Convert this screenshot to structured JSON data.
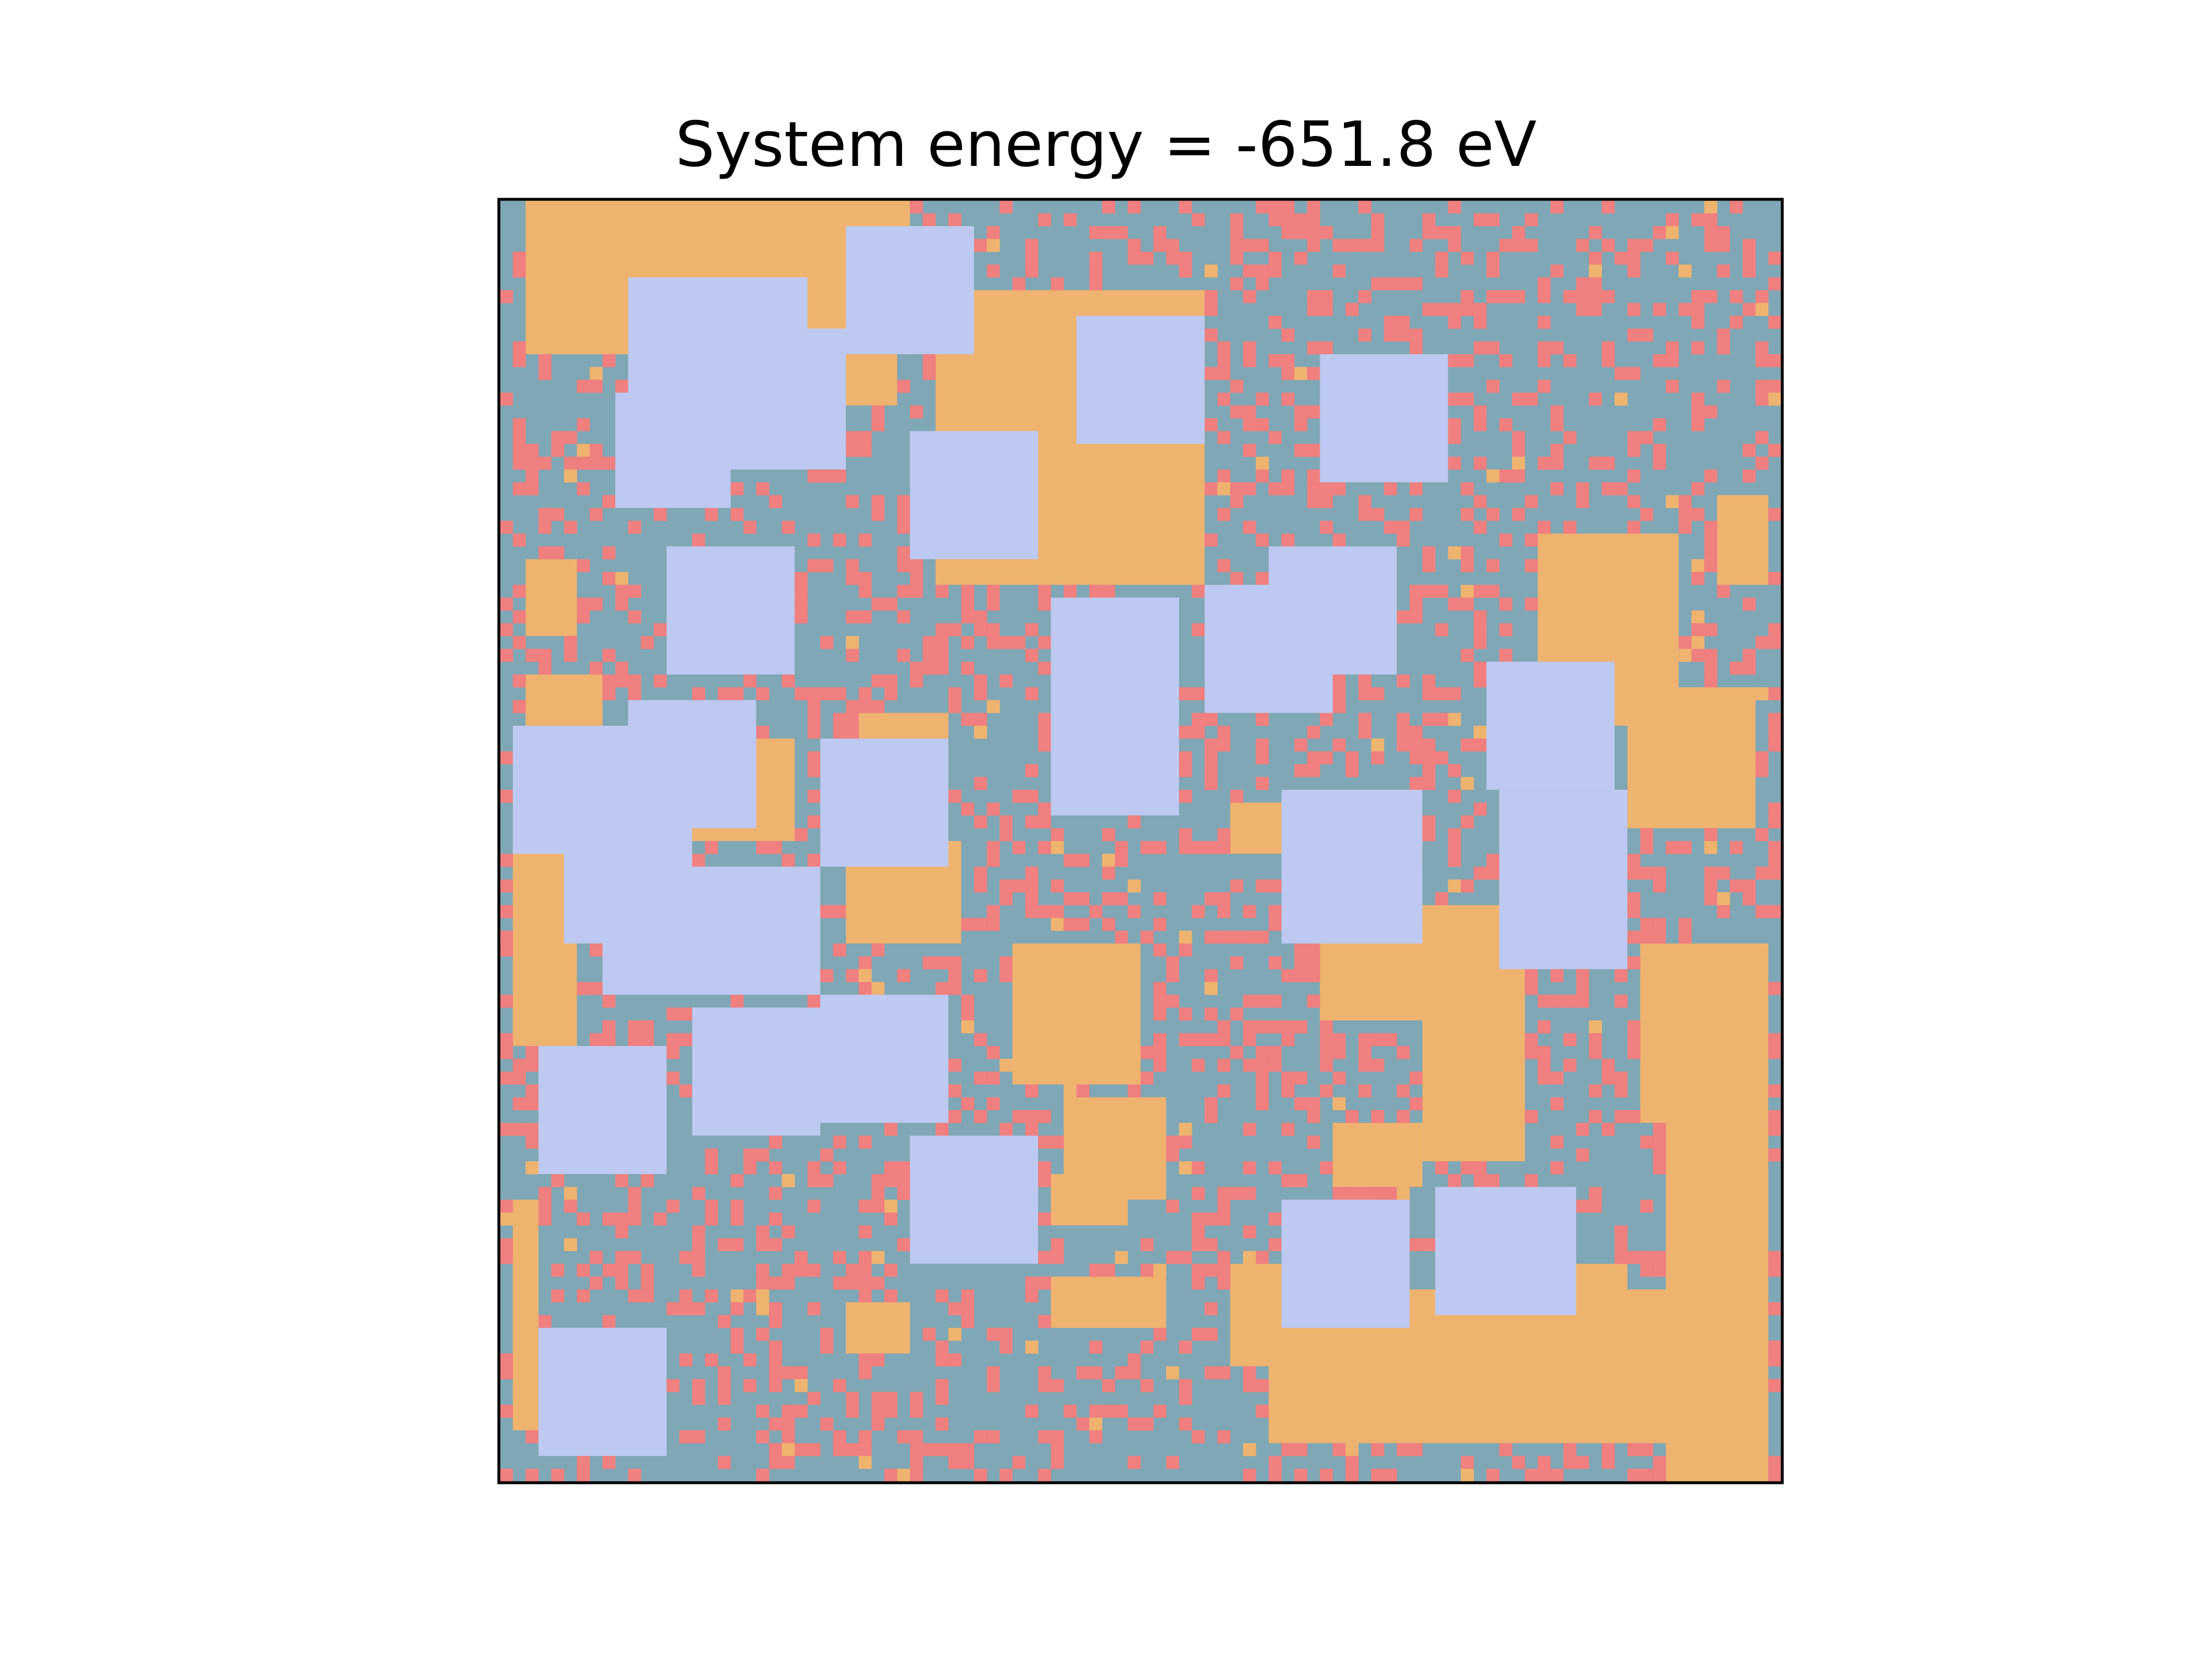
{
  "chart_data": {
    "type": "heatmap",
    "title": "System energy = -651.8 eV",
    "xlabel": "",
    "ylabel": "",
    "grid": false,
    "axis_ticks": false,
    "legend": null,
    "colors": {
      "background_mixed": "#7fa7b5",
      "mixed_pixel": "#f07f7f",
      "phase_orange": "#efb370",
      "grain_lavender": "#bdc9f0",
      "frame": "#000000"
    },
    "phase_map": {
      "nx": 100,
      "ny": 100,
      "orange_regions": [
        [
          2,
          0,
          30,
          12
        ],
        [
          4,
          3,
          11,
          6
        ],
        [
          18,
          12,
          13,
          4
        ],
        [
          34,
          7,
          21,
          23
        ],
        [
          34,
          20,
          12,
          8
        ],
        [
          2,
          28,
          4,
          6
        ],
        [
          2,
          37,
          6,
          5
        ],
        [
          1,
          46,
          5,
          20
        ],
        [
          15,
          42,
          8,
          8
        ],
        [
          27,
          50,
          9,
          8
        ],
        [
          28,
          40,
          7,
          5
        ],
        [
          40,
          58,
          10,
          11
        ],
        [
          44,
          70,
          8,
          8
        ],
        [
          57,
          47,
          11,
          4
        ],
        [
          64,
          57,
          14,
          7
        ],
        [
          64,
          47,
          8,
          5
        ],
        [
          88,
          38,
          10,
          11
        ],
        [
          81,
          26,
          11,
          15
        ],
        [
          72,
          55,
          8,
          20
        ],
        [
          89,
          58,
          10,
          14
        ],
        [
          95,
          23,
          4,
          7
        ],
        [
          43,
          84,
          9,
          4
        ],
        [
          43,
          76,
          6,
          4
        ],
        [
          65,
          72,
          7,
          5
        ],
        [
          57,
          83,
          7,
          8
        ],
        [
          60,
          85,
          36,
          12
        ],
        [
          79,
          83,
          9,
          6
        ],
        [
          91,
          72,
          8,
          28
        ],
        [
          1,
          78,
          2,
          18
        ],
        [
          27,
          86,
          5,
          4
        ]
      ],
      "lavender_grains": [
        [
          27,
          2,
          10,
          10
        ],
        [
          10,
          6,
          10,
          10
        ],
        [
          14,
          6,
          10,
          10
        ],
        [
          9,
          15,
          9,
          9
        ],
        [
          17,
          10,
          10,
          11
        ],
        [
          45,
          9,
          10,
          10
        ],
        [
          64,
          12,
          10,
          10
        ],
        [
          32,
          18,
          10,
          10
        ],
        [
          13,
          27,
          10,
          10
        ],
        [
          43,
          31,
          10,
          17
        ],
        [
          55,
          30,
          10,
          10
        ],
        [
          60,
          27,
          10,
          10
        ],
        [
          77,
          36,
          10,
          10
        ],
        [
          1,
          41,
          10,
          10
        ],
        [
          10,
          39,
          10,
          10
        ],
        [
          25,
          42,
          10,
          10
        ],
        [
          5,
          48,
          10,
          10
        ],
        [
          8,
          52,
          10,
          10
        ],
        [
          15,
          52,
          10,
          10
        ],
        [
          61,
          46,
          11,
          12
        ],
        [
          78,
          46,
          10,
          14
        ],
        [
          15,
          63,
          10,
          10
        ],
        [
          25,
          62,
          10,
          10
        ],
        [
          3,
          66,
          10,
          10
        ],
        [
          32,
          73,
          10,
          10
        ],
        [
          61,
          78,
          10,
          10
        ],
        [
          73,
          77,
          11,
          10
        ],
        [
          3,
          88,
          10,
          10
        ]
      ]
    }
  }
}
